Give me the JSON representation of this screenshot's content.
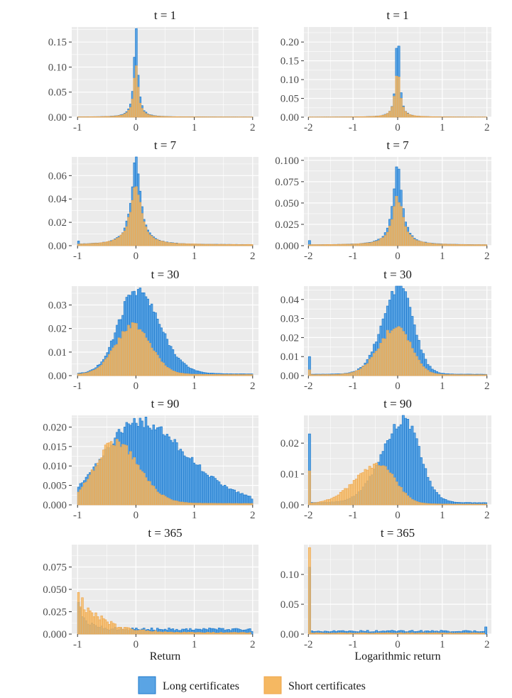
{
  "colors": {
    "long_fill": "#5AA4E4",
    "long_stroke": "#1B78CC",
    "short_fill": "#F5B862",
    "short_stroke": "#F0A64B",
    "panel_bg": "#EBEBEB",
    "grid": "#ffffff"
  },
  "legend": {
    "placement": "bottom",
    "long_label": "Long certificates",
    "short_label": "Short certificates"
  },
  "chart_data": [
    {
      "type": "histogram",
      "title": "t = 1",
      "x_range": [
        -1.1,
        2.1
      ],
      "x_ticks": [
        "-1",
        "0",
        "1",
        "2"
      ],
      "y_range": [
        0,
        0.18
      ],
      "y_ticks": [
        "0.00",
        "0.05",
        "0.10",
        "0.15"
      ],
      "grid": true,
      "xlabel": "",
      "series": [
        {
          "name": "Long certificates",
          "shape": "peak",
          "center": 0,
          "peak": 0.178,
          "width": 0.05,
          "tail": 0.0004
        },
        {
          "name": "Short certificates",
          "shape": "peak",
          "center": 0,
          "peak": 0.098,
          "width": 0.06,
          "tail": 0.0004
        }
      ]
    },
    {
      "type": "histogram",
      "title": "t = 1",
      "x_range": [
        -2.1,
        2.1
      ],
      "x_ticks": [
        "-2",
        "-1",
        "0",
        "1",
        "2"
      ],
      "y_range": [
        0,
        0.24
      ],
      "y_ticks": [
        "0.00",
        "0.05",
        "0.10",
        "0.15",
        "0.20"
      ],
      "grid": true,
      "xlabel": "",
      "series": [
        {
          "name": "Long certificates",
          "shape": "peak",
          "center": 0,
          "peak": 0.232,
          "width": 0.06,
          "tail": 0.0004
        },
        {
          "name": "Short certificates",
          "shape": "peak",
          "center": 0,
          "peak": 0.125,
          "width": 0.08,
          "tail": 0.0004
        }
      ]
    },
    {
      "type": "histogram",
      "title": "t = 7",
      "x_range": [
        -1.1,
        2.1
      ],
      "x_ticks": [
        "-1",
        "0",
        "1",
        "2"
      ],
      "y_range": [
        0,
        0.076
      ],
      "y_ticks": [
        "0.00",
        "0.02",
        "0.04",
        "0.06"
      ],
      "grid": true,
      "xlabel": "",
      "series": [
        {
          "name": "Long certificates",
          "shape": "peak",
          "center": 0,
          "peak": 0.073,
          "width": 0.12,
          "tail": 0.0008,
          "edge": 0.004
        },
        {
          "name": "Short certificates",
          "shape": "peak",
          "center": 0,
          "peak": 0.05,
          "width": 0.14,
          "tail": 0.0008,
          "edge": 0.001
        }
      ]
    },
    {
      "type": "histogram",
      "title": "t = 7",
      "x_range": [
        -2.1,
        2.1
      ],
      "x_ticks": [
        "-2",
        "-1",
        "0",
        "1",
        "2"
      ],
      "y_range": [
        0,
        0.104
      ],
      "y_ticks": [
        "0.000",
        "0.025",
        "0.050",
        "0.075",
        "0.100"
      ],
      "grid": true,
      "xlabel": "",
      "series": [
        {
          "name": "Long certificates",
          "shape": "peak",
          "center": 0,
          "peak": 0.1,
          "width": 0.14,
          "tail": 0.0008,
          "edge": 0.006
        },
        {
          "name": "Short certificates",
          "shape": "peak",
          "center": 0,
          "peak": 0.055,
          "width": 0.18,
          "tail": 0.0008,
          "edge": 0.001
        }
      ]
    },
    {
      "type": "histogram",
      "title": "t = 30",
      "x_range": [
        -1.1,
        2.1
      ],
      "x_ticks": [
        "-1",
        "0",
        "1",
        "2"
      ],
      "y_range": [
        0,
        0.038
      ],
      "y_ticks": [
        "0.00",
        "0.01",
        "0.02",
        "0.03"
      ],
      "grid": true,
      "xlabel": "",
      "series": [
        {
          "name": "Long certificates",
          "shape": "skew",
          "center": 0,
          "peak": 0.036,
          "left_width": 0.3,
          "right_width": 0.4,
          "tail": 0.0006,
          "edge": 0.001
        },
        {
          "name": "Short certificates",
          "shape": "skew",
          "center": -0.05,
          "peak": 0.021,
          "left_width": 0.3,
          "right_width": 0.3,
          "tail": 0.0004,
          "edge": 0.0005
        }
      ]
    },
    {
      "type": "histogram",
      "title": "t = 30",
      "x_range": [
        -2.1,
        2.1
      ],
      "x_ticks": [
        "-2",
        "-1",
        "0",
        "1",
        "2"
      ],
      "y_range": [
        0,
        0.047
      ],
      "y_ticks": [
        "0.00",
        "0.01",
        "0.02",
        "0.03",
        "0.04"
      ],
      "grid": true,
      "xlabel": "",
      "series": [
        {
          "name": "Long certificates",
          "shape": "skew",
          "center": 0.05,
          "peak": 0.047,
          "left_width": 0.38,
          "right_width": 0.3,
          "tail": 0.0006,
          "edge": 0.01
        },
        {
          "name": "Short certificates",
          "shape": "skew",
          "center": 0,
          "peak": 0.026,
          "left_width": 0.4,
          "right_width": 0.3,
          "tail": 0.0004,
          "edge": 0.003
        }
      ]
    },
    {
      "type": "histogram",
      "title": "t = 90",
      "x_range": [
        -1.1,
        2.1
      ],
      "x_ticks": [
        "-1",
        "0",
        "1",
        "2"
      ],
      "y_range": [
        0,
        0.023
      ],
      "y_ticks": [
        "0.000",
        "0.005",
        "0.010",
        "0.015",
        "0.020"
      ],
      "grid": true,
      "xlabel": "",
      "series": [
        {
          "name": "Long certificates",
          "shape": "skew",
          "center": 0,
          "peak": 0.021,
          "left_width": 0.55,
          "right_width": 0.85,
          "tail": 0.0006,
          "edge": 0.004,
          "end": 0.0015
        },
        {
          "name": "Short certificates",
          "shape": "skew",
          "center": -0.35,
          "peak": 0.016,
          "left_width": 0.35,
          "right_width": 0.4,
          "tail": 0.0003,
          "edge": 0.003
        }
      ]
    },
    {
      "type": "histogram",
      "title": "t = 90",
      "x_range": [
        -2.1,
        2.1
      ],
      "x_ticks": [
        "-2",
        "-1",
        "0",
        "1",
        "2"
      ],
      "y_range": [
        0,
        0.029
      ],
      "y_ticks": [
        "0.00",
        "0.01",
        "0.02"
      ],
      "grid": true,
      "xlabel": "",
      "series": [
        {
          "name": "Long certificates",
          "shape": "skew",
          "center": 0.15,
          "peak": 0.027,
          "left_width": 0.5,
          "right_width": 0.35,
          "tail": 0.0006,
          "edge": 0.023
        },
        {
          "name": "Short certificates",
          "shape": "skew",
          "center": -0.4,
          "peak": 0.013,
          "left_width": 0.55,
          "right_width": 0.35,
          "tail": 0.0002,
          "edge": 0.011
        }
      ]
    },
    {
      "type": "histogram",
      "title": "t = 365",
      "x_range": [
        -1.1,
        2.1
      ],
      "x_ticks": [
        "-1",
        "0",
        "1",
        "2"
      ],
      "y_range": [
        0,
        0.1
      ],
      "y_ticks": [
        "0.000",
        "0.025",
        "0.050",
        "0.075"
      ],
      "grid": true,
      "xlabel": "Return",
      "series": [
        {
          "name": "Long certificates",
          "shape": "flat",
          "level": 0.0055,
          "start_peak": 0.03,
          "start_width": 0.15,
          "end": 0.003
        },
        {
          "name": "Short certificates",
          "shape": "flat",
          "level": 0.0015,
          "start_peak": 0.042,
          "start_width": 0.4,
          "end": 0
        }
      ]
    },
    {
      "type": "histogram",
      "title": "t = 365",
      "x_range": [
        -2.1,
        2.1
      ],
      "x_ticks": [
        "-2",
        "-1",
        "0",
        "1",
        "2"
      ],
      "y_range": [
        0,
        0.15
      ],
      "y_ticks": [
        "0.00",
        "0.05",
        "0.10"
      ],
      "grid": true,
      "xlabel": "Logarithmic return",
      "series": [
        {
          "name": "Long certificates",
          "shape": "flat",
          "level": 0.005,
          "spike": 0.112,
          "end": 0.012
        },
        {
          "name": "Short certificates",
          "shape": "flat",
          "level": 0.0018,
          "spike": 0.145,
          "end": 0
        }
      ]
    }
  ]
}
